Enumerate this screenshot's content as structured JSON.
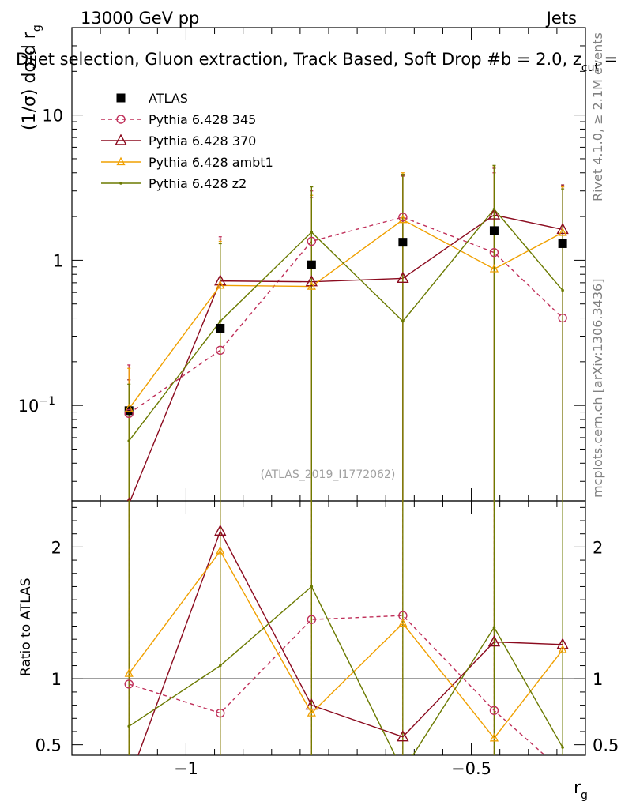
{
  "header": {
    "energy_label": "13000 GeV pp",
    "category_label": "Jets",
    "title": "Dijet selection, Gluon extraction, Track Based, Soft Drop #b = 2.0, z",
    "title_sub": "cut",
    "title_tail": " ="
  },
  "side_labels": {
    "rivet": "Rivet 4.1.0, ≥ 2.1M events",
    "mcplots": "mcplots.cern.ch [arXiv:1306.3436]"
  },
  "watermark": "(ATLAS_2019_I1772062)",
  "colors": {
    "atlas": "#000000",
    "p345": "#c0305a",
    "p370": "#8b0a1e",
    "ambt1": "#f0a000",
    "z2": "#6b7a00"
  },
  "chart_data": [
    {
      "type": "line",
      "panel": "main",
      "ylabel": "(1/σ) dσ/d r",
      "ylabel_sub": "g",
      "yscale": "log",
      "ylim": [
        0.022,
        40
      ],
      "xlim": [
        -1.2,
        -0.3
      ],
      "yticks": [
        {
          "value": 0.1,
          "label": "10",
          "exp": "−1"
        },
        {
          "value": 1,
          "label": "1"
        },
        {
          "value": 10,
          "label": "10"
        }
      ],
      "x": [
        -1.1,
        -0.94,
        -0.78,
        -0.62,
        -0.46,
        -0.34
      ],
      "series": [
        {
          "name": "ATLAS",
          "marker": "square",
          "values": [
            0.092,
            0.34,
            0.93,
            1.33,
            1.6,
            1.3
          ]
        },
        {
          "name": "Pythia 6.428 345",
          "marker": "circle",
          "dashed": true,
          "values": [
            0.088,
            0.24,
            1.35,
            1.98,
            1.13,
            0.4
          ],
          "err_hi": [
            0.19,
            1.45,
            3.0,
            3.9,
            4.0,
            3.2
          ],
          "err_lo": [
            0.0,
            0.0,
            0.0,
            0.0,
            0.0,
            0.0
          ]
        },
        {
          "name": "Pythia 6.428 370",
          "marker": "triangle",
          "values": [
            0.021,
            0.72,
            0.71,
            0.75,
            2.05,
            1.63
          ],
          "err_hi": [
            0.15,
            1.4,
            2.7,
            3.8,
            4.3,
            3.3
          ],
          "err_lo": [
            0.0,
            0.0,
            0.0,
            0.0,
            0.0,
            0.0
          ]
        },
        {
          "name": "Pythia 6.428 ambt1",
          "marker": "triangle-small",
          "values": [
            0.095,
            0.67,
            0.66,
            1.9,
            0.87,
            1.55
          ],
          "err_hi": [
            0.18,
            1.35,
            2.8,
            4.0,
            4.4,
            3.2
          ],
          "err_lo": [
            0.0,
            0.0,
            0.0,
            0.0,
            0.0,
            0.0
          ]
        },
        {
          "name": "Pythia 6.428 z2",
          "marker": "dot",
          "values": [
            0.057,
            0.38,
            1.56,
            0.38,
            2.25,
            0.62
          ],
          "err_hi": [
            0.14,
            1.3,
            3.2,
            3.9,
            4.5,
            3.1
          ],
          "err_lo": [
            0.0,
            0.0,
            0.0,
            0.0,
            0.0,
            0.0
          ]
        }
      ],
      "legend": [
        "ATLAS",
        "Pythia 6.428 345",
        "Pythia 6.428 370",
        "Pythia 6.428 ambt1",
        "Pythia 6.428 z2"
      ],
      "legend_position": "top-left"
    },
    {
      "type": "line",
      "panel": "ratio",
      "ylabel": "Ratio to ATLAS",
      "xlabel": "r",
      "xlabel_sub": "g",
      "ylim": [
        0.42,
        2.35
      ],
      "xlim": [
        -1.2,
        -0.3
      ],
      "xticks": [
        {
          "value": -1,
          "label": "−1"
        },
        {
          "value": -0.5,
          "label": "−0.5"
        }
      ],
      "yticks": [
        {
          "value": 0.5,
          "label": "0.5"
        },
        {
          "value": 1,
          "label": "1"
        },
        {
          "value": 2,
          "label": "2"
        }
      ],
      "reference_line": 1,
      "x": [
        -1.1,
        -0.94,
        -0.78,
        -0.62,
        -0.46,
        -0.34
      ],
      "series": [
        {
          "name": "Pythia 6.428 345",
          "values": [
            0.96,
            0.74,
            1.45,
            1.48,
            0.76,
            0.3
          ]
        },
        {
          "name": "Pythia 6.428 370",
          "values": [
            0.23,
            2.12,
            0.8,
            0.56,
            1.28,
            1.26
          ]
        },
        {
          "name": "Pythia 6.428 ambt1",
          "values": [
            1.04,
            1.97,
            0.74,
            1.42,
            0.55,
            1.22
          ]
        },
        {
          "name": "Pythia 6.428 z2",
          "values": [
            0.64,
            1.1,
            1.7,
            0.3,
            1.39,
            0.48
          ]
        }
      ]
    }
  ]
}
